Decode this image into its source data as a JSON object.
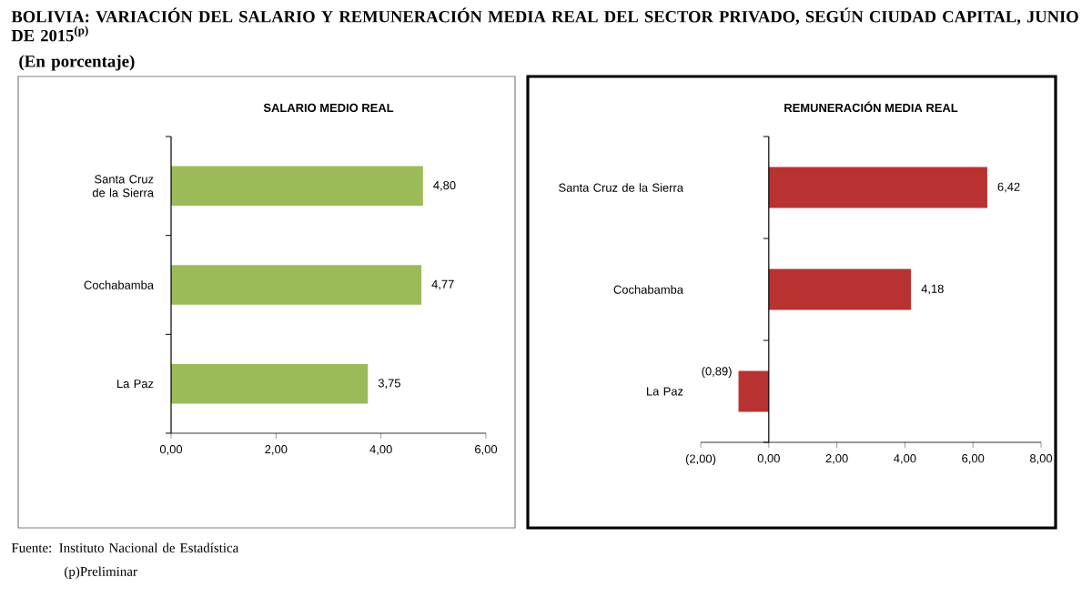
{
  "chart_data": [
    {
      "type": "bar",
      "orientation": "horizontal",
      "title": "SALARIO MEDIO REAL",
      "categories": [
        "Santa Cruz de la Sierra",
        "Cochabamba",
        "La Paz"
      ],
      "values": [
        4.8,
        4.77,
        3.75
      ],
      "value_labels": [
        "4,80",
        "4,77",
        "3,75"
      ],
      "color": "#9bbb59",
      "xlim": [
        0,
        6
      ],
      "xticks": [
        {
          "value": 0,
          "label": "0,00"
        },
        {
          "value": 2,
          "label": "2,00"
        },
        {
          "value": 4,
          "label": "4,00"
        },
        {
          "value": 6,
          "label": "6,00"
        }
      ],
      "annotations": [
        "BOLIVIA: VARIACIÓN DEL SALARIO Y REMUNERACIÓN MEDIA REAL DEL SECTOR PRIVADO, SEGÚN CIUDAD CAPITAL, JUNIO DE 2015$^{(p)}$",
        "(En porcentaje)",
        "Fuente: Instituto Nacional de Estadística",
        "(p)Preliminar"
      ]
    },
    {
      "type": "bar",
      "orientation": "horizontal",
      "title": "REMUNERACIÓN  MEDIA REAL",
      "categories": [
        "Santa Cruz de la Sierra",
        "Cochabamba",
        "La Paz"
      ],
      "values": [
        6.42,
        4.18,
        -0.89
      ],
      "value_labels": [
        "6,42",
        "4,18",
        "(0,89)"
      ],
      "color": "#b83232",
      "xlim": [
        -2,
        8
      ],
      "xticks": [
        {
          "value": -2,
          "label": "(2,00)"
        },
        {
          "value": 0,
          "label": "0,00"
        },
        {
          "value": 2,
          "label": "2,00"
        },
        {
          "value": 4,
          "label": "4,00"
        },
        {
          "value": 6,
          "label": "6,00"
        },
        {
          "value": 8,
          "label": "8,00"
        }
      ]
    }
  ]
}
